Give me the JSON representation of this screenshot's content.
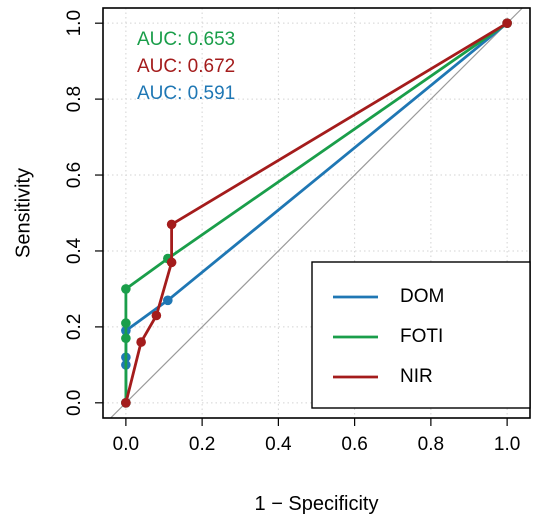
{
  "chart_data": {
    "type": "line",
    "title": "",
    "xlabel": "1 − Specificity",
    "ylabel": "Sensitivity",
    "xlim": [
      -0.06,
      1.06
    ],
    "ylim": [
      -0.04,
      1.04
    ],
    "xticks": [
      0.0,
      0.2,
      0.4,
      0.6,
      0.8,
      1.0
    ],
    "yticks": [
      0.0,
      0.2,
      0.4,
      0.6,
      0.8,
      1.0
    ],
    "xtick_labels": [
      "0.0",
      "0.2",
      "0.4",
      "0.6",
      "0.8",
      "1.0"
    ],
    "ytick_labels": [
      "0.0",
      "0.2",
      "0.4",
      "0.6",
      "0.8",
      "1.0"
    ],
    "grid": true,
    "reference_line": [
      [
        -0.04,
        -0.04
      ],
      [
        1.04,
        1.04
      ]
    ],
    "legend_position": "bottom-right",
    "series": [
      {
        "name": "DOM",
        "color": "#1f77b4",
        "points": [
          [
            0.0,
            0.0
          ],
          [
            0.0,
            0.1
          ],
          [
            0.0,
            0.12
          ],
          [
            0.0,
            0.19
          ],
          [
            0.11,
            0.27
          ],
          [
            1.0,
            1.0
          ]
        ]
      },
      {
        "name": "FOTI",
        "color": "#1a9e4a",
        "points": [
          [
            0.0,
            0.0
          ],
          [
            0.0,
            0.17
          ],
          [
            0.0,
            0.21
          ],
          [
            0.0,
            0.3
          ],
          [
            0.11,
            0.38
          ],
          [
            1.0,
            1.0
          ]
        ]
      },
      {
        "name": "NIR",
        "color": "#a41c1c",
        "points": [
          [
            0.0,
            0.0
          ],
          [
            0.04,
            0.16
          ],
          [
            0.08,
            0.23
          ],
          [
            0.12,
            0.37
          ],
          [
            0.12,
            0.47
          ],
          [
            1.0,
            1.0
          ]
        ]
      }
    ],
    "annotations": [
      {
        "text": "AUC: 0.653",
        "color": "#1a9e4a"
      },
      {
        "text": "AUC: 0.672",
        "color": "#a41c1c"
      },
      {
        "text": "AUC: 0.591",
        "color": "#1f77b4"
      }
    ]
  }
}
